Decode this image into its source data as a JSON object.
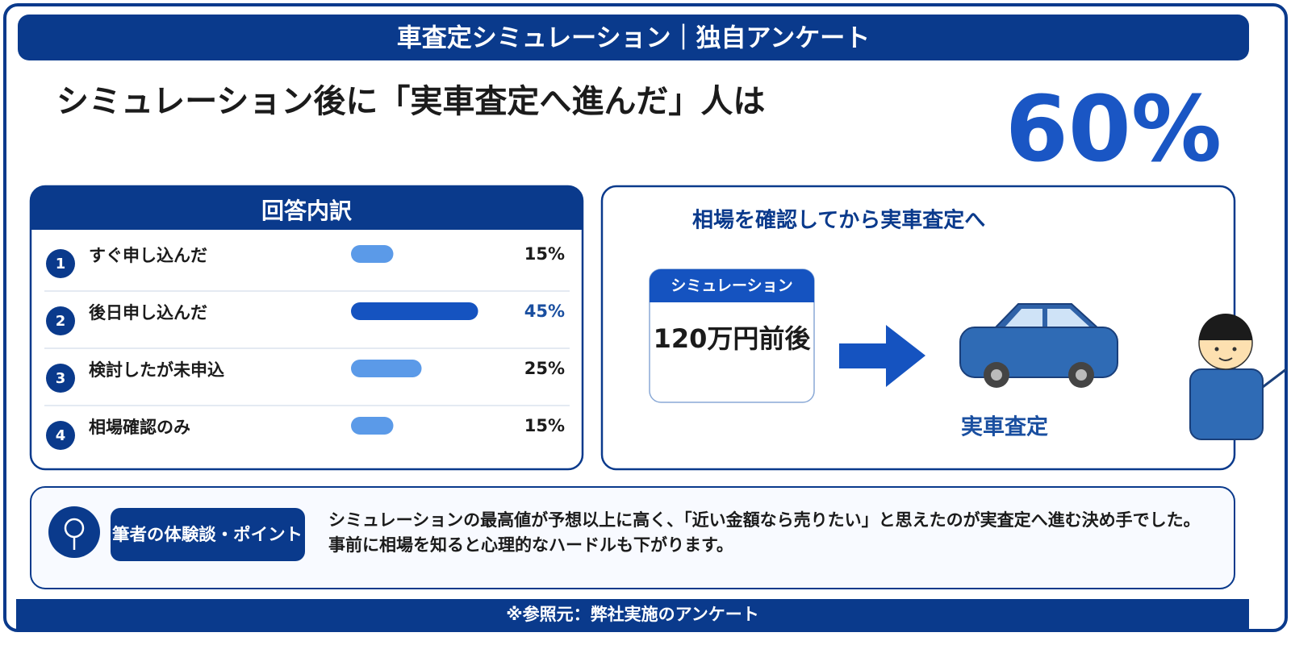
{
  "header": {
    "title": "車査定シミュレーション｜独自アンケート"
  },
  "headline": {
    "text": "シミュレーション後に「実車査定へ進んだ」人は",
    "value": "60%"
  },
  "breakdown": {
    "title": "回答内訳",
    "items": [
      {
        "number": "1",
        "label": "すぐ申し込んだ",
        "value": 15,
        "value_label": "15%",
        "color": "#5b9ae8",
        "emphasis": false
      },
      {
        "number": "2",
        "label": "後日申し込んだ",
        "value": 45,
        "value_label": "45%",
        "color": "#1553c0",
        "emphasis": true
      },
      {
        "number": "3",
        "label": "検討したが未申込",
        "value": 25,
        "value_label": "25%",
        "color": "#5b9ae8",
        "emphasis": false
      },
      {
        "number": "4",
        "label": "相場確認のみ",
        "value": 15,
        "value_label": "15%",
        "color": "#5b9ae8",
        "emphasis": false
      }
    ]
  },
  "flow": {
    "title": "相場を確認してから実車査定へ",
    "card_title": "シミュレーション",
    "card_value": "120万円前後",
    "result": "実車査定"
  },
  "point": {
    "badge": "筆者の体験談・ポイント",
    "text": "シミュレーションの最高値が予想以上に高く、「近い金額なら売りたい」と思えたのが実査定へ進む決め手でした。事前に相場を知ると心理的なハードルも下がります。"
  },
  "footer": {
    "source": "※参照元：弊社実施のアンケート"
  }
}
